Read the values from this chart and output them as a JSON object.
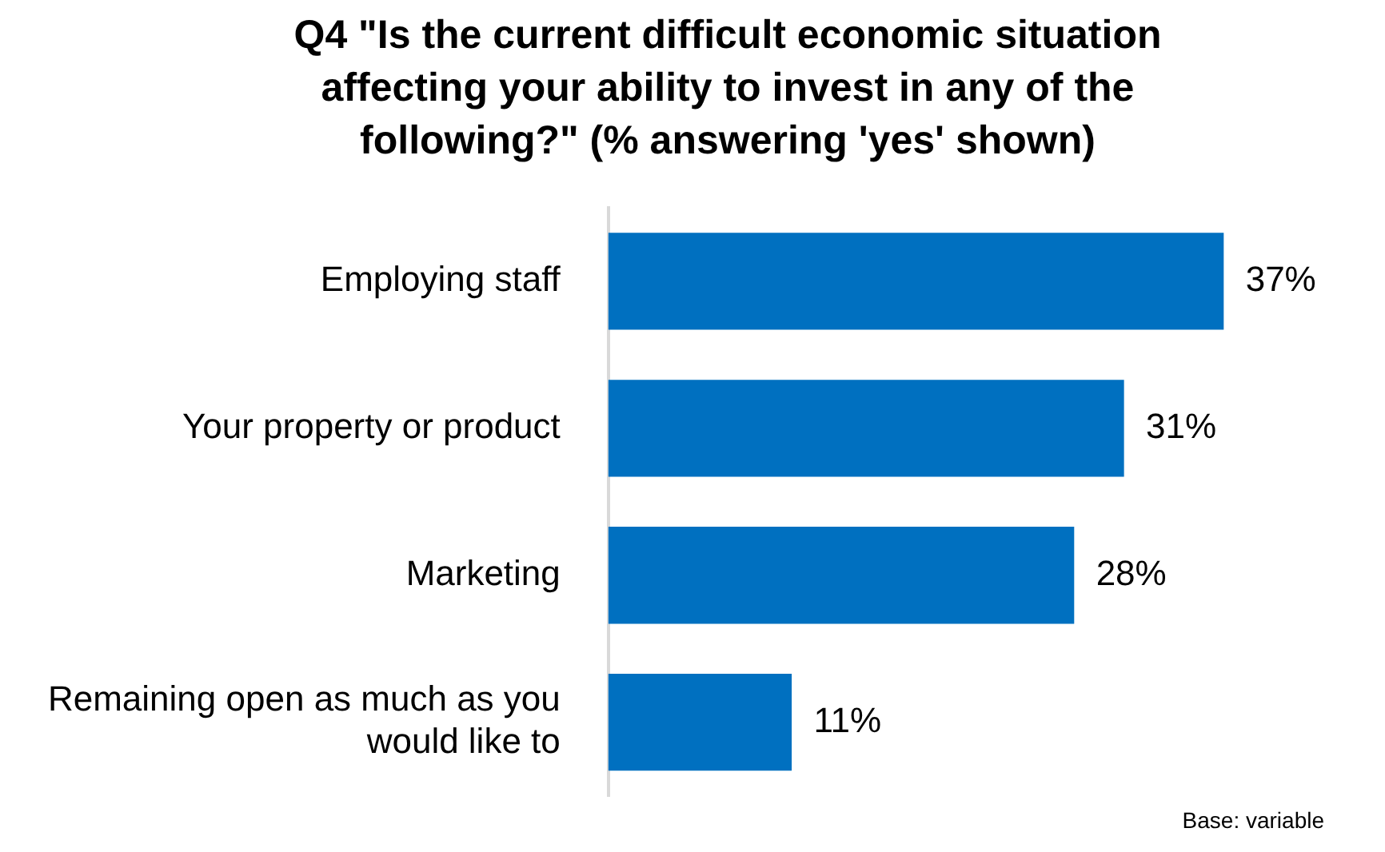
{
  "chart_data": {
    "type": "bar",
    "orientation": "horizontal",
    "title": "Q4 \"Is the current difficult economic situation affecting your ability to invest in any of the following?\" (% answering 'yes' shown)",
    "categories": [
      "Employing staff",
      "Your property or product",
      "Marketing",
      "Remaining open as much as you would like to"
    ],
    "values": [
      37,
      31,
      28,
      11
    ],
    "color": "#0070c0",
    "value_labels": [
      "37%",
      "31%",
      "28%",
      "11%"
    ],
    "tick_labels": "y",
    "legend": false,
    "annotations": [
      "Base: variable"
    ]
  }
}
